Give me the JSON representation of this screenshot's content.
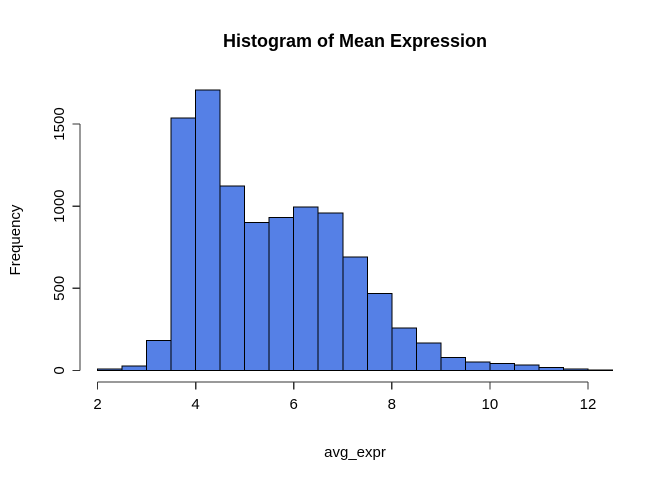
{
  "window": {
    "background": "#FFFFFF"
  },
  "chart_data": {
    "type": "bar",
    "subtype": "histogram",
    "title": "Histogram of Mean Expression",
    "xlabel": "avg_expr",
    "ylabel": "Frequency",
    "bin_start": 2.0,
    "bin_width": 0.5,
    "bin_edges": [
      2.0,
      2.5,
      3.0,
      3.5,
      4.0,
      4.5,
      5.0,
      5.5,
      6.0,
      6.5,
      7.0,
      7.5,
      8.0,
      8.5,
      9.0,
      9.5,
      10.0,
      10.5,
      11.0,
      11.5,
      12.0,
      12.5
    ],
    "frequencies": [
      8,
      28,
      184,
      1536,
      1708,
      1124,
      900,
      930,
      995,
      957,
      690,
      470,
      260,
      167,
      80,
      52,
      42,
      32,
      18,
      8,
      3
    ],
    "x_ticks": [
      2,
      4,
      6,
      8,
      10,
      12
    ],
    "y_ticks": [
      0,
      500,
      1000,
      1500
    ],
    "xlim": [
      2,
      12.5
    ],
    "ylim": [
      0,
      1710
    ],
    "grid": false,
    "legend": "none",
    "bar_fill": "#5580E6",
    "bar_stroke": "#000000",
    "axis_color": "#333333",
    "text_color": "#000000"
  }
}
